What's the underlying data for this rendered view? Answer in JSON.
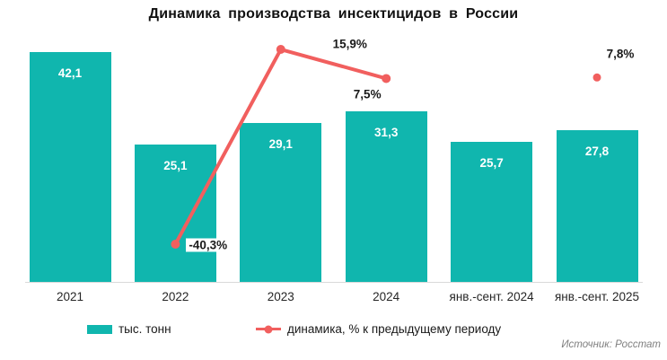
{
  "header": {
    "title": "Динамика производства инсектицидов в России"
  },
  "legend": {
    "items": [
      {
        "label": "тыс. тонн",
        "marker": "bar-swatch",
        "color": "#10b6ae"
      },
      {
        "label": "динамика, % к предыдущему периоду",
        "marker": "line-dot",
        "color": "#f15f5e"
      }
    ]
  },
  "footer": {
    "source": "Источник: Росстат"
  },
  "colors": {
    "bar": "#10b6ae",
    "line": "#f15f5e",
    "axis_line": "#d9d9d9",
    "bar_label_text": "#ffffff",
    "pct_label_text": "#1a1a1a",
    "axis_label_text": "#262626",
    "source_text": "#7f7f7f"
  },
  "chart_data": {
    "type": "bar",
    "title": "Динамика производства инсектицидов в России",
    "categories": [
      "2021",
      "2022",
      "2023",
      "2024",
      "янв.-сент. 2024",
      "янв.-сент. 2025"
    ],
    "series": [
      {
        "name": "тыс. тонн",
        "type": "bar",
        "color": "#10b6ae",
        "values": [
          42.1,
          25.1,
          29.1,
          31.3,
          25.7,
          27.8
        ],
        "labels": [
          "42,1",
          "25,1",
          "29,1",
          "31,3",
          "25,7",
          "27,8"
        ]
      },
      {
        "name": "динамика, % к предыдущему периоду",
        "type": "line",
        "color": "#f15f5e",
        "values": [
          null,
          -40.3,
          15.9,
          7.5,
          null,
          7.8
        ],
        "labels": [
          null,
          "-40,3%",
          "15,9%",
          "7,5%",
          null,
          "7,8%"
        ],
        "connected_categories": [
          "2022",
          "2023",
          "2024"
        ],
        "isolated_point_category": "янв.-сент. 2025"
      }
    ],
    "xlabel": "",
    "ylabel": "",
    "ylim": [
      0,
      45
    ],
    "grid": false,
    "value_axis_visible": false,
    "legend_position": "bottom",
    "source": "Источник: Росстат"
  }
}
